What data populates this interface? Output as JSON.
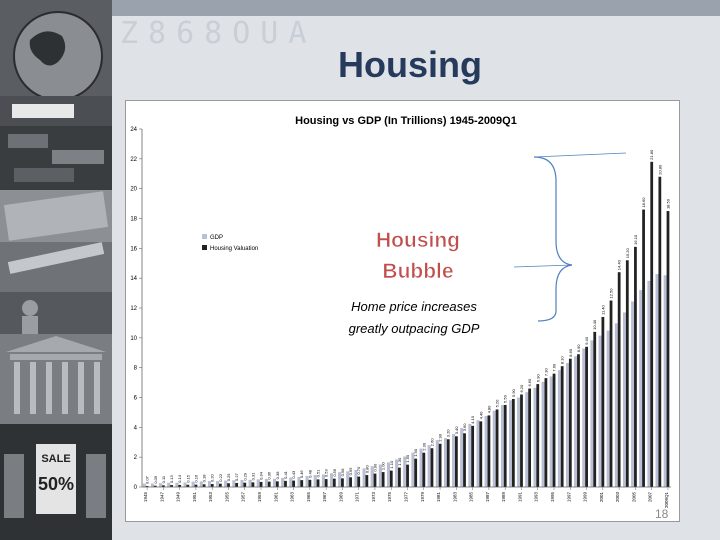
{
  "slide": {
    "title": "Housing",
    "page_number": "18",
    "watermark": "Z868OUA"
  },
  "annotation": {
    "heading_line1": "Housing",
    "heading_line2": "Bubble",
    "caption_line1": "Home price increases",
    "caption_line2": "greatly outpacing GDP"
  },
  "colors": {
    "title": "#263a5c",
    "gdp": "#b9bfd4",
    "housing": "#222222",
    "annotation": "#c0504d",
    "bracket": "#4f81bd"
  },
  "chart_data": {
    "type": "bar",
    "title": "Housing vs GDP (In Trillions)    1945-2009Q1",
    "xlabel": "",
    "ylabel": "",
    "ylim": [
      0,
      24
    ],
    "yticks": [
      0,
      2,
      4,
      6,
      8,
      10,
      12,
      14,
      16,
      18,
      20,
      22,
      24
    ],
    "legend_position": "left-middle",
    "grid": false,
    "categories": [
      "1945",
      "1946",
      "1947",
      "1948",
      "1949",
      "1950",
      "1951",
      "1952",
      "1953",
      "1954",
      "1955",
      "1956",
      "1957",
      "1958",
      "1959",
      "1960",
      "1961",
      "1962",
      "1963",
      "1964",
      "1965",
      "1966",
      "1967",
      "1968",
      "1969",
      "1970",
      "1971",
      "1972",
      "1973",
      "1974",
      "1975",
      "1976",
      "1977",
      "1978",
      "1979",
      "1980",
      "1981",
      "1982",
      "1983",
      "1984",
      "1985",
      "1986",
      "1987",
      "1988",
      "1989",
      "1990",
      "1991",
      "1992",
      "1993",
      "1994",
      "1995",
      "1996",
      "1997",
      "1998",
      "1999",
      "2000",
      "2001",
      "2002",
      "2003",
      "2004",
      "2005",
      "2006",
      "2007",
      "2008",
      "2009Q1"
    ],
    "xticklabels": [
      "1945",
      "1947",
      "1949",
      "1951",
      "1953",
      "1955",
      "1957",
      "1959",
      "1961",
      "1963",
      "1965",
      "1967",
      "1969",
      "1971",
      "1973",
      "1975",
      "1977",
      "1979",
      "1981",
      "1983",
      "1985",
      "1987",
      "1989",
      "1991",
      "1993",
      "1995",
      "1997",
      "1999",
      "2001",
      "2003",
      "2005",
      "2007",
      "2009Q1"
    ],
    "series": [
      {
        "name": "GDP",
        "values": [
          0.22,
          0.22,
          0.24,
          0.27,
          0.27,
          0.29,
          0.34,
          0.36,
          0.38,
          0.38,
          0.41,
          0.44,
          0.46,
          0.47,
          0.5,
          0.53,
          0.54,
          0.59,
          0.62,
          0.66,
          0.72,
          0.79,
          0.83,
          0.91,
          0.98,
          1.04,
          1.13,
          1.24,
          1.38,
          1.5,
          1.64,
          1.83,
          2.03,
          2.29,
          2.56,
          2.79,
          3.13,
          3.26,
          3.54,
          3.93,
          4.22,
          4.46,
          4.74,
          5.1,
          5.48,
          5.8,
          5.99,
          6.34,
          6.64,
          7.04,
          7.4,
          7.82,
          8.3,
          8.75,
          9.27,
          9.82,
          10.13,
          10.47,
          10.96,
          11.69,
          12.42,
          13.18,
          13.81,
          14.26,
          14.18
        ]
      },
      {
        "name": "Housing Valuation",
        "values": [
          0.07,
          0.09,
          0.11,
          0.13,
          0.14,
          0.15,
          0.16,
          0.18,
          0.2,
          0.22,
          0.25,
          0.27,
          0.29,
          0.31,
          0.34,
          0.36,
          0.38,
          0.41,
          0.43,
          0.46,
          0.48,
          0.51,
          0.53,
          0.56,
          0.58,
          0.65,
          0.7,
          0.8,
          0.9,
          1.0,
          1.1,
          1.3,
          1.5,
          1.9,
          2.3,
          2.6,
          2.9,
          3.2,
          3.4,
          3.6,
          4.1,
          4.4,
          4.8,
          5.2,
          5.5,
          5.9,
          6.2,
          6.6,
          6.9,
          7.3,
          7.6,
          8.1,
          8.6,
          8.9,
          9.4,
          10.4,
          11.4,
          12.5,
          14.4,
          15.2,
          16.1,
          18.6,
          21.8,
          20.8,
          18.5
        ]
      }
    ],
    "data_labels": {
      "1945": "0.07",
      "1946": "0.09",
      "1947": "0.11",
      "1948": "0.13",
      "1949": "0.14",
      "1950": "0.15",
      "1951": "0.16",
      "1952": "0.18",
      "1953": "0.20",
      "1954": "0.22",
      "1955": "0.25",
      "1956": "0.27",
      "1957": "0.29",
      "1958": "0.31",
      "1959": "0.34",
      "1960": "0.36",
      "1961": "0.38",
      "1962": "0.41",
      "1963": "0.43",
      "1964": "0.46",
      "1965": "0.48",
      "1966": "0.51",
      "1967": "0.53",
      "1968": "0.56",
      "1969": "0.58",
      "1970": "0.65",
      "1971": "0.70",
      "1972": "0.80",
      "1973": "0.90",
      "1974": "1.00",
      "1975": "1.10",
      "1976": "1.30",
      "1977": "1.50",
      "1978": "1.90",
      "1979": "2.30",
      "1980": "2.60",
      "1981": "2.90",
      "1982": "3.20",
      "1983": "3.40",
      "1984": "3.60",
      "1985": "4.10",
      "1986": "4.40",
      "1987": "4.80",
      "1988": "5.20",
      "1989": "5.50",
      "1990": "5.90",
      "1991": "6.20",
      "1992": "6.60",
      "1993": "6.90",
      "1994": "7.30",
      "1995": "7.60",
      "1996": "8.10",
      "1997": "8.60",
      "1998": "8.90",
      "1999": "9.40",
      "2000": "10.40",
      "2001": "11.40",
      "2002": "12.50",
      "2003": "14.40",
      "2004": "15.20",
      "2005": "16.10",
      "2006": "18.60",
      "2007": "21.80",
      "2008": "20.80",
      "2009Q1": "18.50"
    }
  }
}
